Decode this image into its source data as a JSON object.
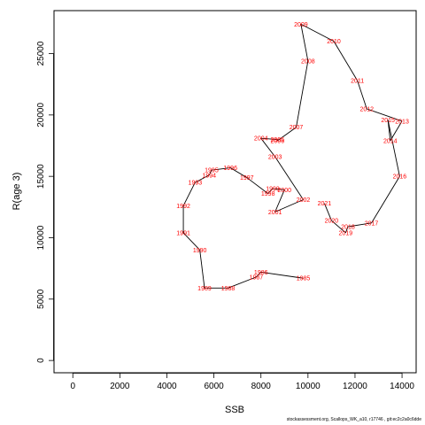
{
  "chart_data": {
    "type": "line",
    "xlabel": "SSB",
    "ylabel": "R(age 3)",
    "xlim": [
      -800,
      14600
    ],
    "ylim": [
      -1000,
      28500
    ],
    "x_ticks": [
      0,
      2000,
      4000,
      6000,
      8000,
      10000,
      12000,
      14000
    ],
    "y_ticks": [
      0,
      5000,
      10000,
      15000,
      20000,
      25000
    ],
    "grid": false,
    "line_color": "#000000",
    "label_color": "#ff0000",
    "points": [
      {
        "year": "1985",
        "x": 9800,
        "y": 6700
      },
      {
        "year": "1986",
        "x": 8000,
        "y": 7200
      },
      {
        "year": "1987",
        "x": 7800,
        "y": 6800
      },
      {
        "year": "1988",
        "x": 6600,
        "y": 5900
      },
      {
        "year": "1989",
        "x": 5600,
        "y": 5900
      },
      {
        "year": "1990",
        "x": 5400,
        "y": 9000
      },
      {
        "year": "1991",
        "x": 4700,
        "y": 10400
      },
      {
        "year": "1992",
        "x": 4700,
        "y": 12600
      },
      {
        "year": "1993",
        "x": 5200,
        "y": 14500
      },
      {
        "year": "1994",
        "x": 5800,
        "y": 15100
      },
      {
        "year": "1995",
        "x": 5900,
        "y": 15500
      },
      {
        "year": "1996",
        "x": 6700,
        "y": 15700
      },
      {
        "year": "1997",
        "x": 7400,
        "y": 14900
      },
      {
        "year": "1998",
        "x": 8300,
        "y": 13600
      },
      {
        "year": "1999",
        "x": 8500,
        "y": 14000
      },
      {
        "year": "2000",
        "x": 9000,
        "y": 13900
      },
      {
        "year": "2001",
        "x": 8600,
        "y": 12100
      },
      {
        "year": "2002",
        "x": 9800,
        "y": 13100
      },
      {
        "year": "2003",
        "x": 8600,
        "y": 16600
      },
      {
        "year": "2004",
        "x": 8000,
        "y": 18100
      },
      {
        "year": "2005",
        "x": 8700,
        "y": 18000
      },
      {
        "year": "2006",
        "x": 8700,
        "y": 17900
      },
      {
        "year": "2007",
        "x": 9500,
        "y": 19000
      },
      {
        "year": "2008",
        "x": 10000,
        "y": 24400
      },
      {
        "year": "2009",
        "x": 9700,
        "y": 27400
      },
      {
        "year": "2010",
        "x": 11100,
        "y": 26000
      },
      {
        "year": "2011",
        "x": 12100,
        "y": 22800
      },
      {
        "year": "2012",
        "x": 12500,
        "y": 20500
      },
      {
        "year": "2013",
        "x": 14000,
        "y": 19500
      },
      {
        "year": "2014",
        "x": 13500,
        "y": 17900
      },
      {
        "year": "2015",
        "x": 13400,
        "y": 19600
      },
      {
        "year": "2016",
        "x": 13900,
        "y": 15000
      },
      {
        "year": "2017",
        "x": 12700,
        "y": 11200
      },
      {
        "year": "2018",
        "x": 11700,
        "y": 10900
      },
      {
        "year": "2019",
        "x": 11600,
        "y": 10400
      },
      {
        "year": "2020",
        "x": 11000,
        "y": 11400
      },
      {
        "year": "2021",
        "x": 10700,
        "y": 12800
      }
    ]
  },
  "footer": {
    "text": "stockassessment.org, Scallops_WK_a10, r17746 , git:ec2c2a0c6dde"
  }
}
